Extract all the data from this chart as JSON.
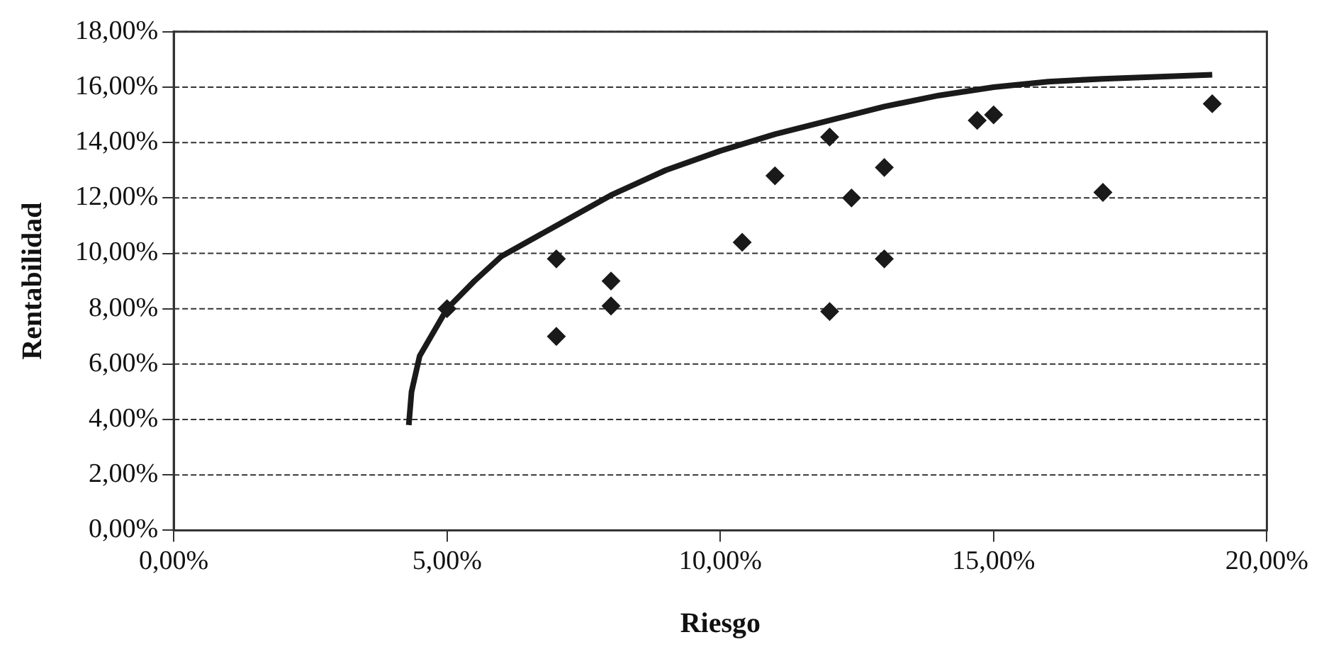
{
  "chart_data": {
    "type": "scatter",
    "xlabel": "Riesgo",
    "ylabel": "Rentabilidad",
    "xlim": [
      0,
      20
    ],
    "xticks": [
      {
        "value": 0,
        "label": "0,00%"
      },
      {
        "value": 5,
        "label": "5,00%"
      },
      {
        "value": 10,
        "label": "10,00%"
      },
      {
        "value": 15,
        "label": "15,00%"
      },
      {
        "value": 20,
        "label": "20,00%"
      }
    ],
    "ylim": [
      0,
      18
    ],
    "yticks": [
      {
        "value": 0,
        "label": "0,00%"
      },
      {
        "value": 2,
        "label": "2,00%"
      },
      {
        "value": 4,
        "label": "4,00%"
      },
      {
        "value": 6,
        "label": "6,00%"
      },
      {
        "value": 8,
        "label": "8,00%"
      },
      {
        "value": 10,
        "label": "10,00%"
      },
      {
        "value": 12,
        "label": "12,00%"
      },
      {
        "value": 14,
        "label": "14,00%"
      },
      {
        "value": 16,
        "label": "16,00%"
      },
      {
        "value": 18,
        "label": "18,00%"
      }
    ],
    "grid": "y",
    "legend": false,
    "series": [
      {
        "type": "line",
        "marker": "none",
        "line_style": "solid",
        "color": "#1a1a1a",
        "x": [
          4.3,
          4.35,
          4.5,
          5,
          5.5,
          6,
          7,
          8,
          9,
          10,
          11,
          12,
          13,
          14,
          15,
          16,
          17,
          19
        ],
        "values": [
          3.8,
          5.0,
          6.3,
          8.0,
          9.0,
          9.9,
          11.0,
          12.1,
          13.0,
          13.7,
          14.3,
          14.8,
          15.3,
          15.7,
          16.0,
          16.2,
          16.3,
          16.45
        ]
      },
      {
        "marker": "diamond",
        "color": "#1a1a1a",
        "x": [
          5,
          7,
          7,
          8,
          8,
          10.4,
          11,
          12,
          12,
          12.4,
          13,
          13,
          14.7,
          15,
          17,
          19
        ],
        "values": [
          8.0,
          9.8,
          7.0,
          9.0,
          8.1,
          10.4,
          12.8,
          14.2,
          7.9,
          12.0,
          13.1,
          9.8,
          14.8,
          15.0,
          12.2,
          15.4
        ]
      }
    ]
  }
}
